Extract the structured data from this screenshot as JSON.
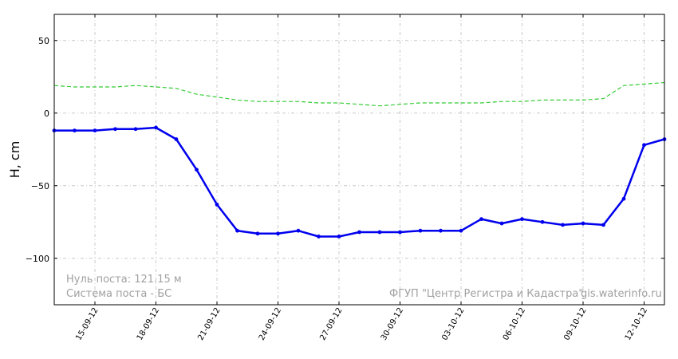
{
  "chart_data": {
    "type": "line",
    "title": "",
    "xlabel": "",
    "ylabel": "H, cm",
    "ylim": [
      -132,
      68
    ],
    "xlim": [
      "2012-09-13",
      "2012-10-13"
    ],
    "yticks": [
      50,
      0,
      -50,
      -100
    ],
    "ytick_labels": [
      "50",
      "0",
      "−50",
      "−100"
    ],
    "xticks": [
      "2012-09-15",
      "2012-09-18",
      "2012-09-21",
      "2012-09-24",
      "2012-09-27",
      "2012-09-30",
      "2012-10-03",
      "2012-10-06",
      "2012-10-09",
      "2012-10-12"
    ],
    "xtick_labels": [
      "15-09-12",
      "18-09-12",
      "21-09-12",
      "24-09-12",
      "27-09-12",
      "30-09-12",
      "03-10-12",
      "06-10-12",
      "09-10-12",
      "12-10-12"
    ],
    "grid": true,
    "series": [
      {
        "color": "#33cc33",
        "style": "dashed",
        "x": [
          "2012-09-13",
          "2012-09-14",
          "2012-09-15",
          "2012-09-16",
          "2012-09-17",
          "2012-09-18",
          "2012-09-19",
          "2012-09-20",
          "2012-09-21",
          "2012-09-22",
          "2012-09-23",
          "2012-09-24",
          "2012-09-25",
          "2012-09-26",
          "2012-09-27",
          "2012-09-28",
          "2012-09-29",
          "2012-09-30",
          "2012-10-01",
          "2012-10-02",
          "2012-10-03",
          "2012-10-04",
          "2012-10-05",
          "2012-10-06",
          "2012-10-07",
          "2012-10-08",
          "2012-10-09",
          "2012-10-10",
          "2012-10-11",
          "2012-10-12",
          "2012-10-13"
        ],
        "values": [
          19,
          18,
          18,
          18,
          19,
          18,
          17,
          13,
          11,
          9,
          8,
          8,
          8,
          7,
          7,
          6,
          5,
          6,
          7,
          7,
          7,
          7,
          8,
          8,
          9,
          9,
          9,
          10,
          19,
          20,
          21
        ]
      },
      {
        "color": "#0000ee",
        "style": "solid",
        "markers": true,
        "x": [
          "2012-09-13",
          "2012-09-14",
          "2012-09-15",
          "2012-09-16",
          "2012-09-17",
          "2012-09-18",
          "2012-09-19",
          "2012-09-20",
          "2012-09-21",
          "2012-09-22",
          "2012-09-23",
          "2012-09-24",
          "2012-09-25",
          "2012-09-26",
          "2012-09-27",
          "2012-09-28",
          "2012-09-29",
          "2012-09-30",
          "2012-10-01",
          "2012-10-02",
          "2012-10-03",
          "2012-10-04",
          "2012-10-05",
          "2012-10-06",
          "2012-10-07",
          "2012-10-08",
          "2012-10-09",
          "2012-10-10",
          "2012-10-11",
          "2012-10-12",
          "2012-10-13"
        ],
        "values": [
          -12,
          -12,
          -12,
          -11,
          -11,
          -10,
          -18,
          -39,
          -63,
          -81,
          -83,
          -83,
          -81,
          -85,
          -85,
          -82,
          -82,
          -82,
          -81,
          -81,
          -81,
          -73,
          -76,
          -73,
          -75,
          -77,
          -76,
          -77,
          -59,
          -22,
          -18
        ]
      }
    ]
  },
  "notes": {
    "zero": "Нуль поста: 121.15 м",
    "system": "Система поста - БС",
    "org": "ФГУП \"Центр Регистра и Кадастра\"",
    "site": "gis.waterinfo.ru"
  },
  "colors": {
    "annotation": "#a0a0a0",
    "grid": "#c8c8c8"
  }
}
